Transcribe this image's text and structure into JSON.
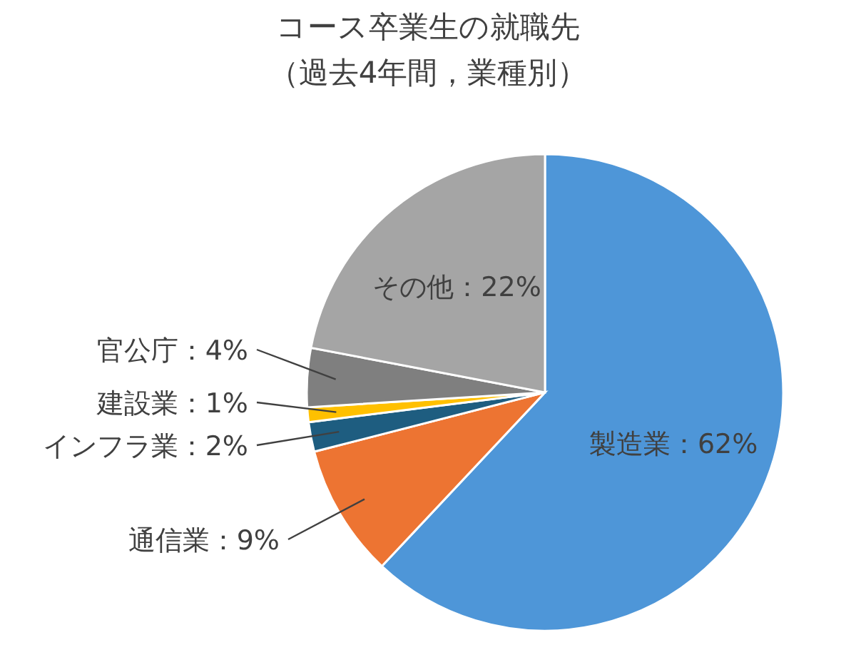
{
  "chart_data": {
    "type": "pie",
    "title": "コース卒業生の就職先",
    "subtitle": "（過去4年間，業種別）",
    "categories": [
      "製造業",
      "通信業",
      "インフラ業",
      "建設業",
      "官公庁",
      "その他"
    ],
    "values": [
      62,
      9,
      2,
      1,
      4,
      22
    ],
    "colors": [
      "#4e96d8",
      "#ed7432",
      "#1e5d80",
      "#ffc000",
      "#7f7f7f",
      "#a5a5a5"
    ],
    "value_labels": [
      "62%",
      "9%",
      "2%",
      "1%",
      "4%",
      "22%"
    ]
  }
}
